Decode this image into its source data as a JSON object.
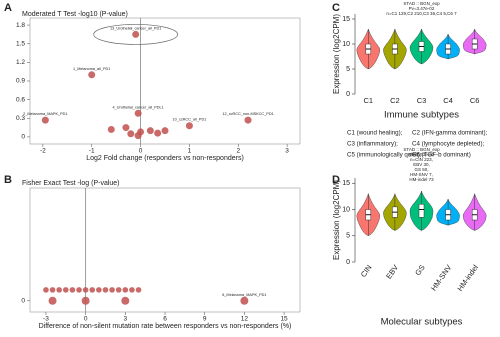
{
  "chart_data": [
    {
      "type": "scatter",
      "panel": "A",
      "title": "Moderated T Test  -log10 (P-value)",
      "xlabel": "Log2 Fold change (responders vs non-responders)",
      "x": [
        -0.1,
        -1.0,
        -0.05,
        -1.95,
        2.2,
        1.0,
        -0.6,
        -0.3,
        -0.2,
        0.0,
        0.2,
        0.35,
        0.5,
        -0.05
      ],
      "y": [
        1.65,
        1.0,
        0.38,
        0.27,
        0.27,
        0.18,
        0.12,
        0.15,
        0.05,
        0.08,
        0.1,
        0.06,
        0.1,
        0.02
      ],
      "point_labels": [
        "13_Urothelial_cancer_all_PD1",
        "1_Melanoma_all_PD1",
        "4_Urothelial_cancer_all_PDL1",
        "2_Melanoma_MAPK_PD1",
        "12_ccRCC_non-MSKCC_PD1",
        "10_ccRCC_all_PD1",
        null,
        null,
        null,
        null,
        null,
        null,
        null,
        null
      ],
      "xlim": [
        -2.1,
        3.1
      ],
      "ylim": [
        -0.05,
        1.85
      ],
      "xticks": [
        -2,
        -1,
        0,
        1,
        2,
        3
      ],
      "yticks": [
        0,
        0.3,
        0.6,
        0.9,
        1.2,
        1.5,
        1.8
      ],
      "color": "#c0504d"
    },
    {
      "type": "scatter",
      "panel": "B",
      "title": "Fisher Exact Test  -log (P-value)",
      "xlabel": "Difference of non-silent mutation rate between responders vs non-responders (%)",
      "x": [
        -2.5,
        0,
        3,
        12,
        -3,
        -2.5,
        -2,
        -1.5,
        -1,
        -0.5,
        0,
        0.5,
        1,
        1.5,
        2,
        2.5,
        3,
        3.5,
        4
      ],
      "y": [
        0,
        0,
        0,
        0,
        0.03,
        0.03,
        0.03,
        0.03,
        0.03,
        0.03,
        0.03,
        0.03,
        0.03,
        0.03,
        0.03,
        0.03,
        0.03,
        0.03,
        0.03
      ],
      "point_labels": [
        null,
        null,
        null,
        "8_Melanoma_MAPK_PD1",
        null,
        null,
        null,
        null,
        null,
        null,
        null,
        null,
        null,
        null,
        null,
        null,
        null,
        null,
        null
      ],
      "xlim": [
        -3.6,
        15.6
      ],
      "ylim": [
        -0.02,
        0.3
      ],
      "xticks": [
        -3,
        0,
        3,
        6,
        9,
        12,
        15
      ],
      "yticks": [
        0
      ],
      "color": "#c0504d"
    },
    {
      "type": "violin",
      "panel": "C",
      "title": "STAD :: BGN_exp",
      "subtitle": [
        "Pv=3.47e-02",
        "n=C1 129,C2 210,C3 36,C4 5,C6 7"
      ],
      "ylabel": "Expression (log2CPM)",
      "xlabel": "Immune subtypes",
      "categories": [
        "C1",
        "C2",
        "C3",
        "C4",
        "C6"
      ],
      "colors": [
        "#f8766d",
        "#a3a500",
        "#00bf7d",
        "#00b0f6",
        "#e76bf3"
      ],
      "min": [
        5,
        5,
        6,
        7,
        8
      ],
      "q1": [
        8,
        8,
        8.5,
        8,
        9
      ],
      "median": [
        9,
        9,
        9.5,
        9,
        10
      ],
      "q3": [
        10,
        10,
        10.5,
        10,
        11
      ],
      "max": [
        13,
        13,
        13,
        12,
        13
      ],
      "ylim": [
        0,
        16
      ],
      "yticks": [
        0,
        5,
        10,
        15
      ],
      "notes": [
        "C1 (wound healing);",
        "C2 (IFN-gamma dominant);",
        "C3 (inflammatory);",
        "C4 (lymphocyte depleted);",
        "C5 (immunologically quiet);",
        "C6 (TGF-b dominant)"
      ]
    },
    {
      "type": "violin",
      "panel": "D",
      "title": "STAD :: BGN_exp",
      "subtitle": [
        "Pv=2.63e-02",
        "n=CIN 223,",
        "EBV 30,",
        "GS 50,",
        "HM-SNV 7,",
        "HM-indel 73"
      ],
      "ylabel": "Expression (log2CPM)",
      "xlabel": "Molecular subtypes",
      "categories": [
        "CIN",
        "EBV",
        "GS",
        "HM-SNV",
        "HM-indel"
      ],
      "colors": [
        "#f8766d",
        "#a3a500",
        "#00bf7d",
        "#00b0f6",
        "#e76bf3"
      ],
      "min": [
        5,
        6,
        6,
        7,
        6
      ],
      "q1": [
        8,
        8.5,
        8.5,
        8,
        8
      ],
      "median": [
        9,
        9.5,
        10,
        9,
        9
      ],
      "q3": [
        10,
        10.5,
        11,
        10,
        10
      ],
      "max": [
        13,
        13,
        13.5,
        12,
        13
      ],
      "ylim": [
        0,
        16
      ],
      "yticks": [
        0,
        5,
        10,
        15
      ]
    }
  ]
}
